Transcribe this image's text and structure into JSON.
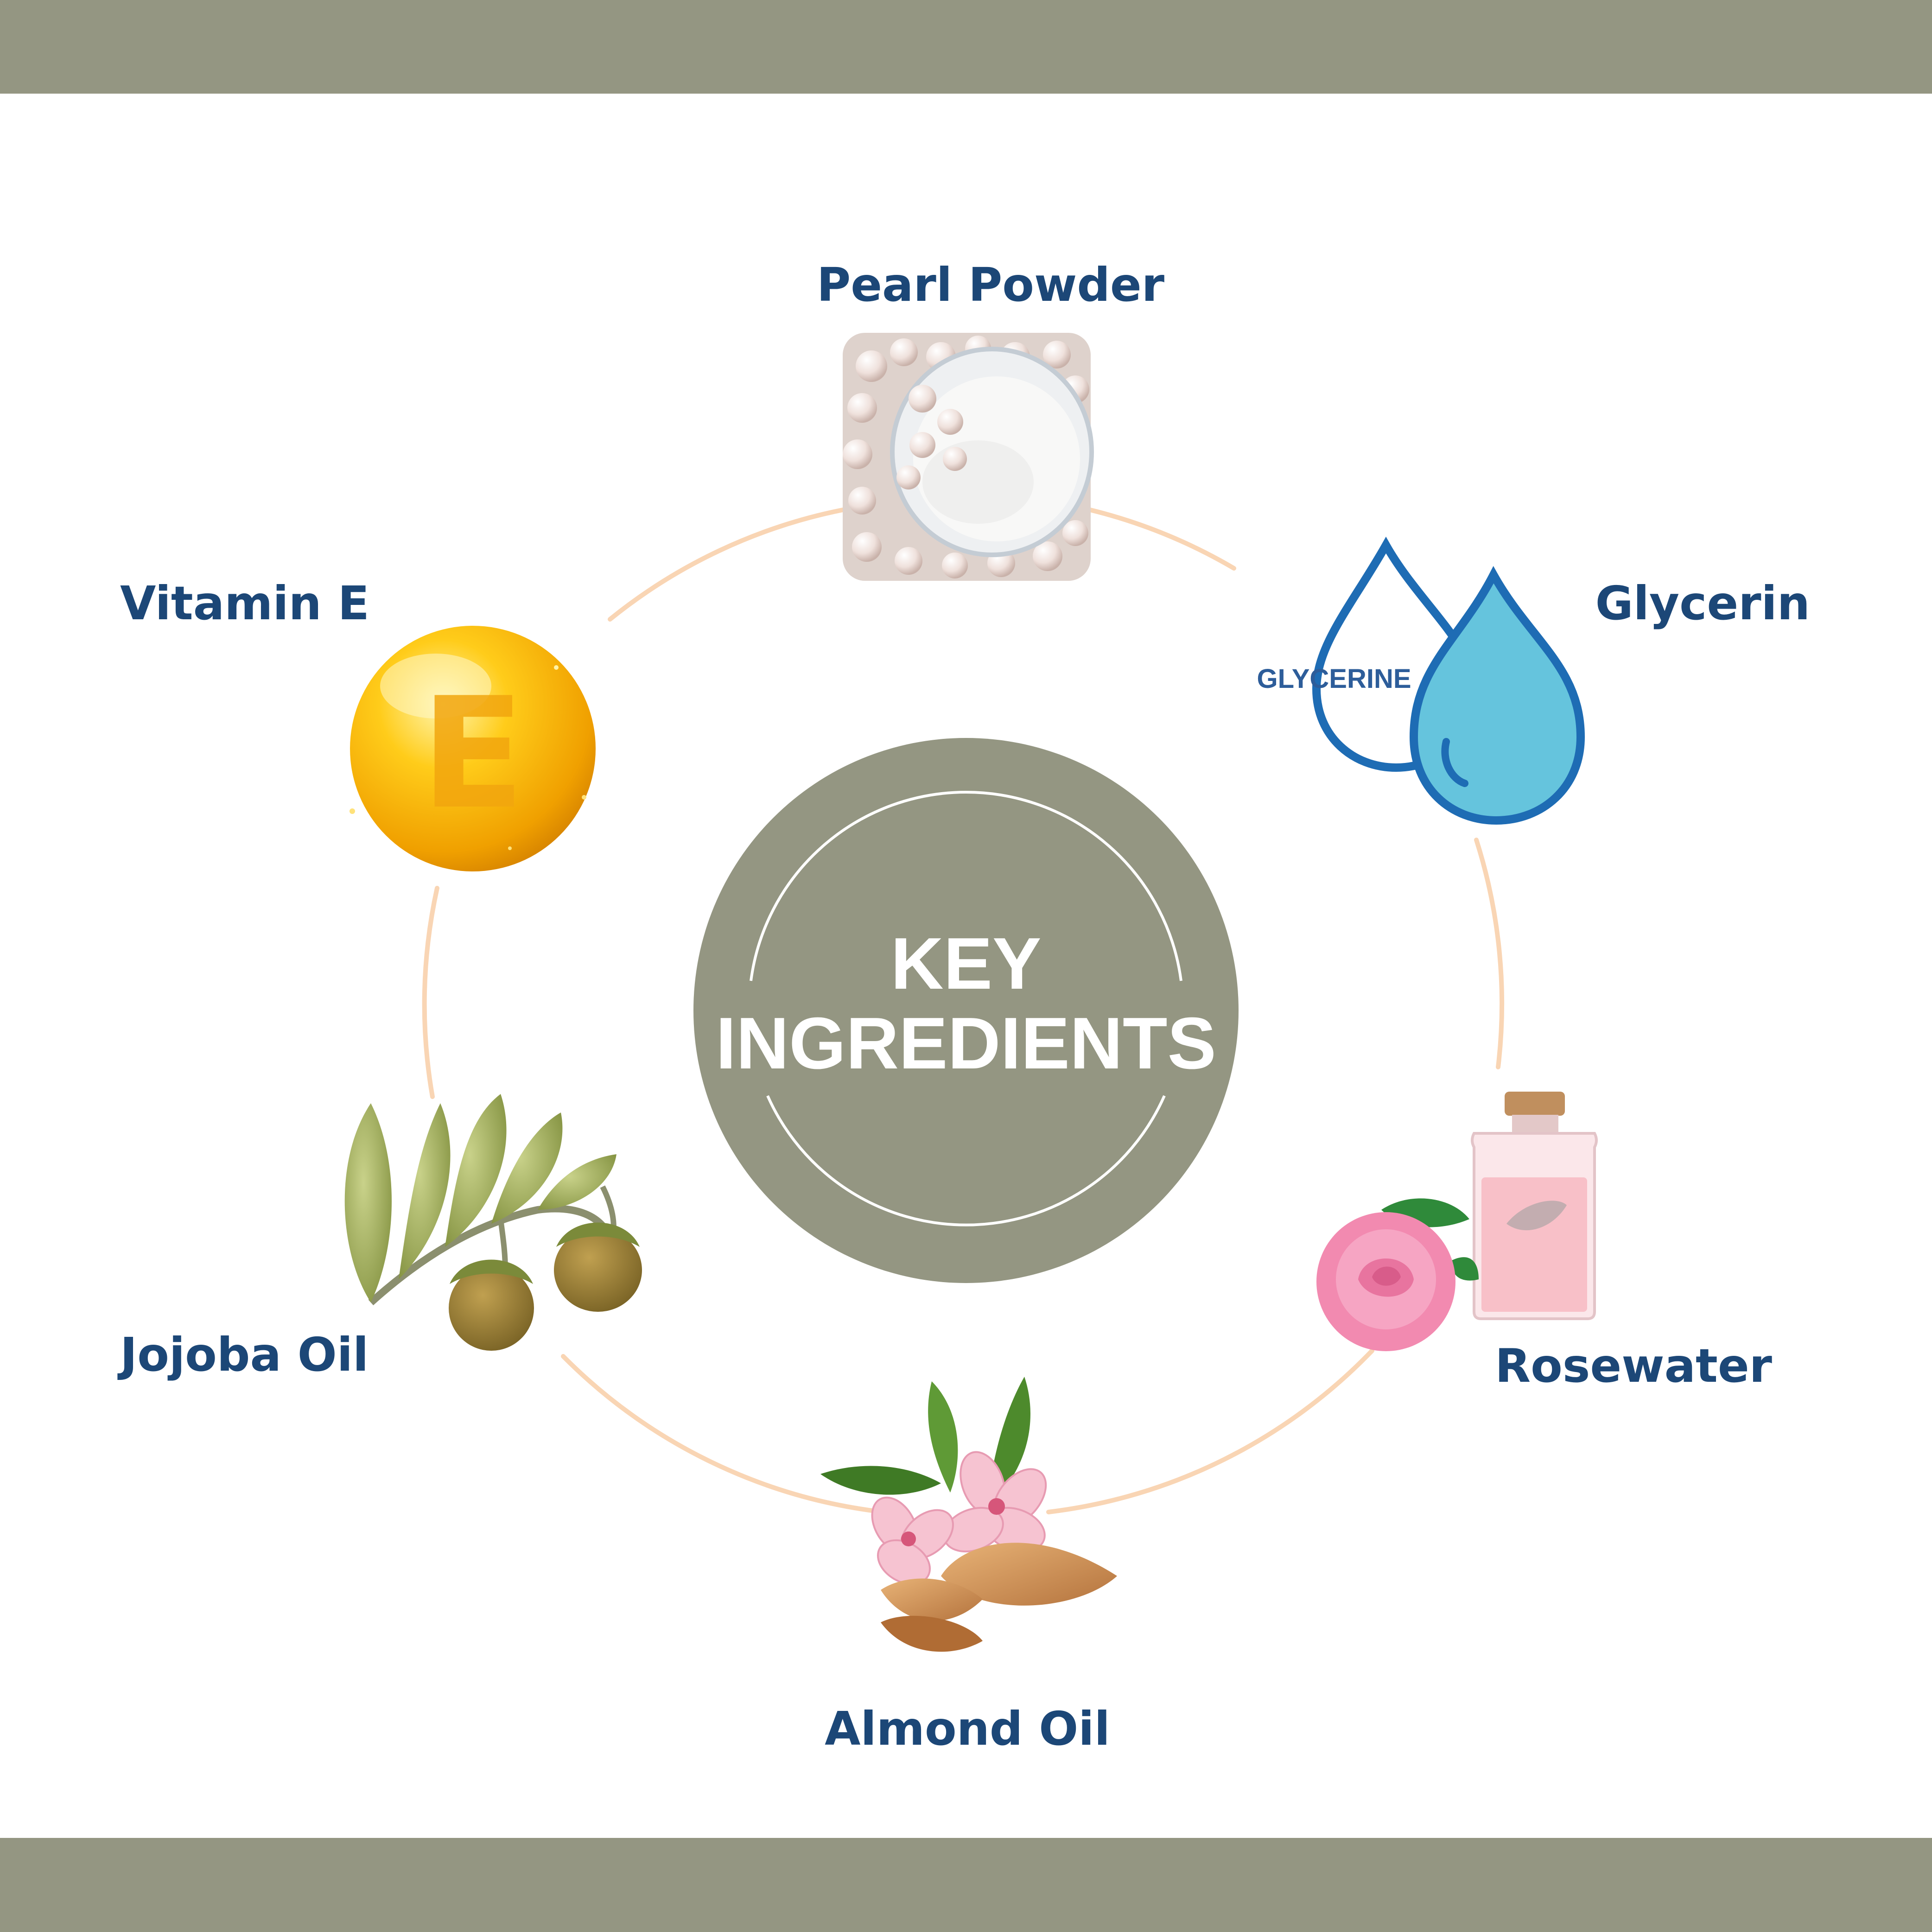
{
  "colors": {
    "band": "#949682",
    "hub": "#949682",
    "ring": "#f9d5b4",
    "label": "#1c4777",
    "hub_text": "#ffffff"
  },
  "hub": {
    "line1": "KEY",
    "line2": "INGREDIENTS"
  },
  "ingredients": [
    {
      "name": "Pearl Powder",
      "icon": "pearl-powder-icon"
    },
    {
      "name": "Glycerin",
      "icon": "glycerin-drops-icon",
      "icon_text": "GLYCERINE"
    },
    {
      "name": "Rosewater",
      "icon": "rose-bottle-icon"
    },
    {
      "name": "Almond Oil",
      "icon": "almond-blossom-icon"
    },
    {
      "name": "Jojoba Oil",
      "icon": "jojoba-branch-icon"
    },
    {
      "name": "Vitamin E",
      "icon": "vitamin-e-capsule-icon",
      "icon_text": "E"
    }
  ]
}
